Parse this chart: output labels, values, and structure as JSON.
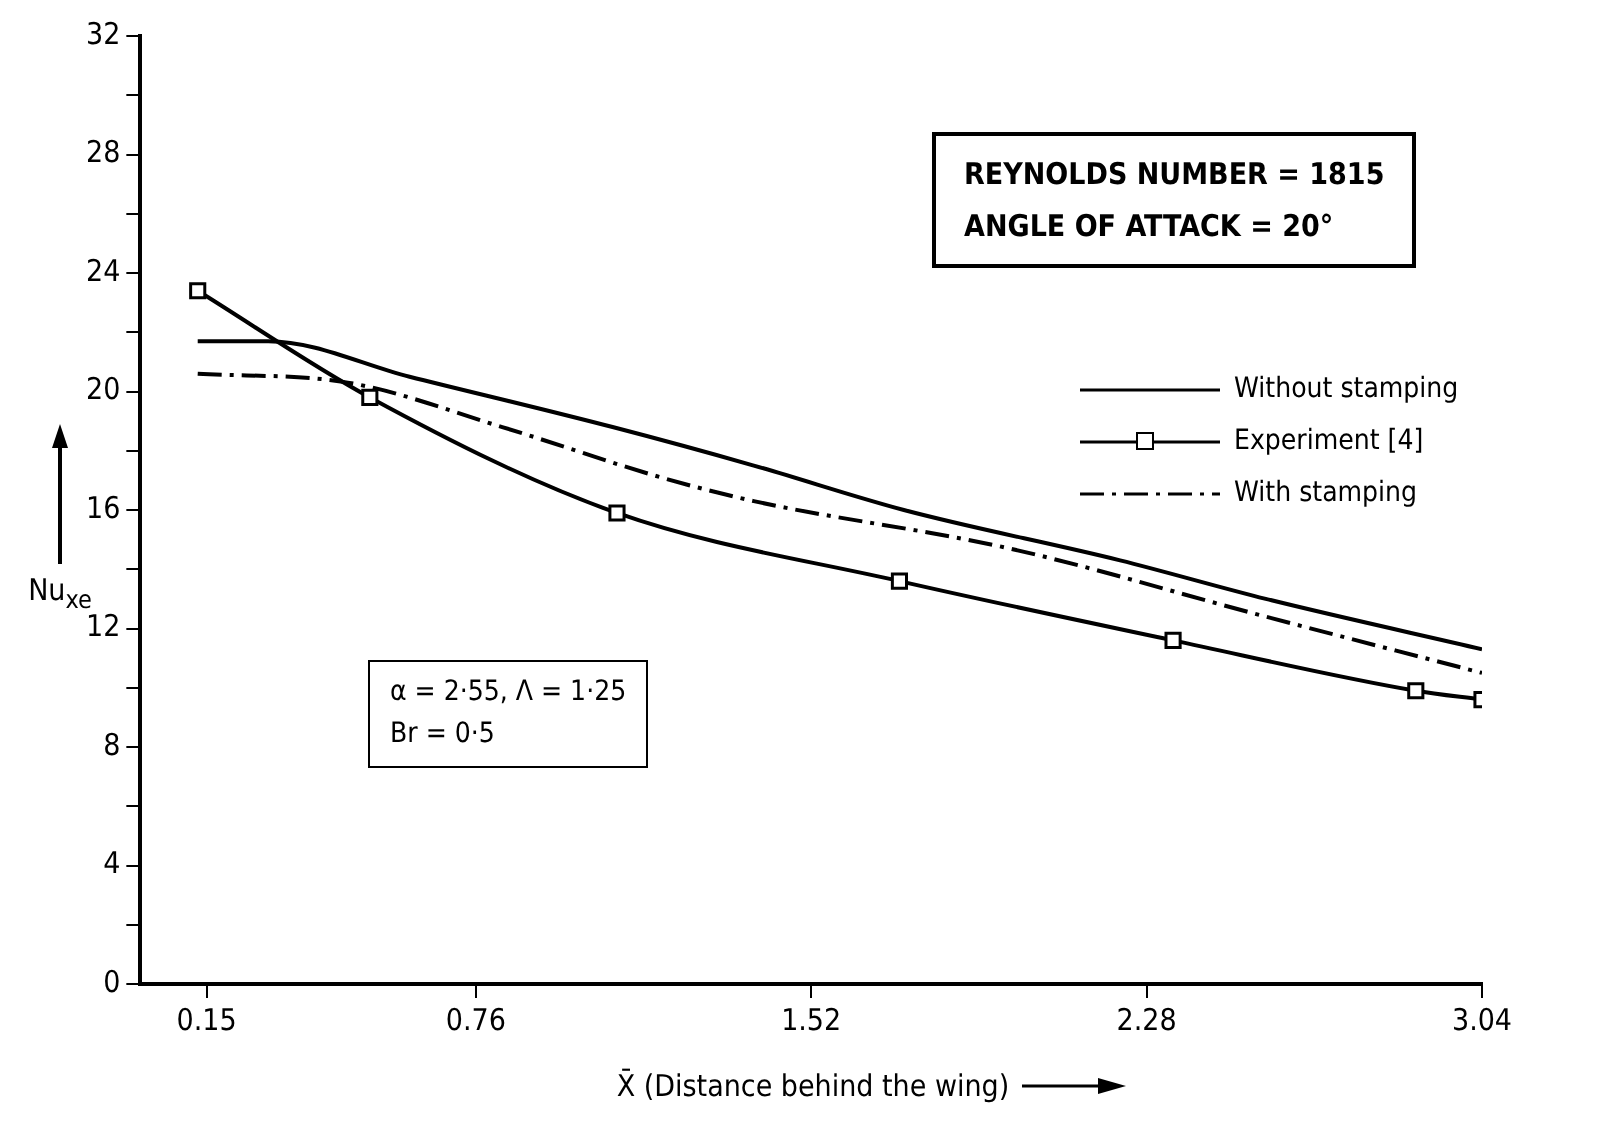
{
  "chart_data": {
    "type": "line",
    "xlabel": "X̄ (Distance behind the wing)",
    "ylabel": "Nu$_{xe}$",
    "xlim": [
      0,
      3.04
    ],
    "xticks": [
      0.15,
      0.76,
      1.52,
      2.28,
      3.04
    ],
    "ylim": [
      0,
      32
    ],
    "yticks": [
      0,
      {
        "value": 2,
        "label": null
      },
      4,
      {
        "value": 6,
        "label": null
      },
      8,
      {
        "value": 10,
        "label": null
      },
      12,
      {
        "value": 14,
        "label": null
      },
      16,
      {
        "value": 18,
        "label": null
      },
      20,
      {
        "value": 22,
        "label": null
      },
      24,
      {
        "value": 26,
        "label": null
      },
      28,
      {
        "value": 30,
        "label": null
      },
      32
    ],
    "legend": "right",
    "annotations": [
      "REYNOLDS NUMBER = 1815",
      "ANGLE OF ATTACK = 20°",
      "α = 2·55, Λ = 1·25",
      "Br = 0·5"
    ],
    "series": [
      {
        "name": "Without stamping",
        "color": "#000000",
        "marker": "none",
        "line_style": "solid",
        "x": [
          0.13,
          0.29,
          0.61,
          1.07,
          1.39,
          1.73,
          2.22,
          2.55,
          3.04
        ],
        "values": [
          21.7,
          21.7,
          20.5,
          18.8,
          17.5,
          16.0,
          14.3,
          13.0,
          11.3
        ]
      },
      {
        "name": "Experiment [4]",
        "color": "#000000",
        "marker": "square",
        "line_style": "solid",
        "x": [
          0.13,
          0.52,
          1.08,
          1.72,
          2.34,
          2.89,
          3.04
        ],
        "values": [
          23.4,
          19.8,
          15.9,
          13.6,
          11.6,
          9.9,
          9.6
        ]
      },
      {
        "name": "With stamping",
        "color": "#000000",
        "marker": "none",
        "line_style": "dashed",
        "x": [
          0.13,
          0.47,
          0.82,
          1.18,
          1.39,
          1.97,
          2.55,
          3.04
        ],
        "values": [
          20.6,
          20.3,
          18.8,
          17.1,
          16.3,
          14.7,
          12.4,
          10.5
        ]
      }
    ]
  }
}
